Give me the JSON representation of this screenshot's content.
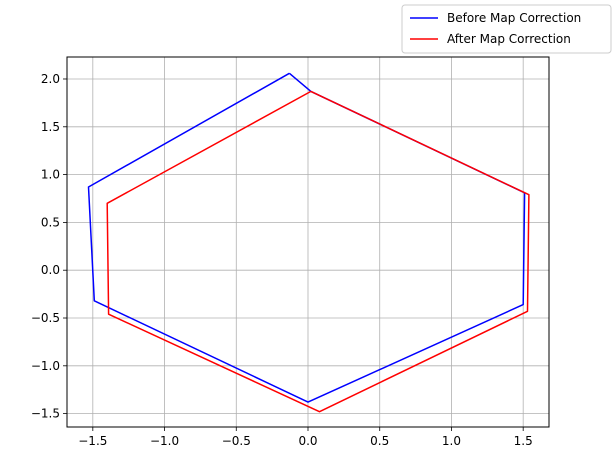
{
  "chart_data": {
    "type": "line",
    "title": "",
    "xlabel": "",
    "ylabel": "",
    "xlim": [
      -1.68,
      1.68
    ],
    "ylim": [
      -1.64,
      2.23
    ],
    "xticks": [
      -1.5,
      -1.0,
      -0.5,
      0.0,
      0.5,
      1.0,
      1.5
    ],
    "xtick_labels": [
      "−1.5",
      "−1.0",
      "−0.5",
      "0.0",
      "0.5",
      "1.0",
      "1.5"
    ],
    "yticks": [
      -1.5,
      -1.0,
      -0.5,
      0.0,
      0.5,
      1.0,
      1.5,
      2.0
    ],
    "ytick_labels": [
      "−1.5",
      "−1.0",
      "−0.5",
      "0.0",
      "0.5",
      "1.0",
      "1.5",
      "2.0"
    ],
    "grid": true,
    "legend": "outside-top-right",
    "series": [
      {
        "name": "Before Map Correction",
        "color": "#0000ff",
        "x": [
          -0.13,
          0.02,
          1.51,
          1.5,
          0.0,
          -1.49,
          -1.53,
          -0.13
        ],
        "y": [
          2.06,
          1.87,
          0.81,
          -0.36,
          -1.38,
          -0.32,
          0.87,
          2.06
        ]
      },
      {
        "name": "After Map Correction",
        "color": "#ff0000",
        "x": [
          0.02,
          1.54,
          1.53,
          0.08,
          -1.39,
          -1.4,
          0.02
        ],
        "y": [
          1.87,
          0.79,
          -0.43,
          -1.48,
          -0.46,
          0.7,
          1.87
        ]
      }
    ]
  }
}
